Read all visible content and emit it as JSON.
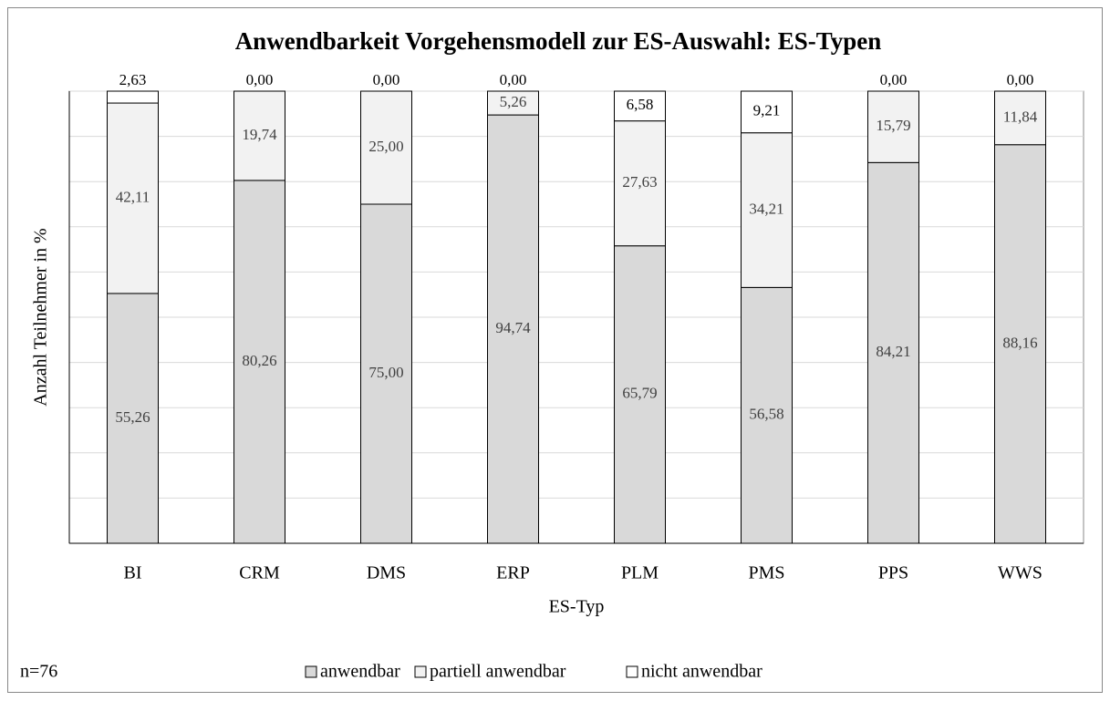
{
  "chart_data": {
    "type": "stacked_bar",
    "title": "Anwendbarkeit Vorgehensmodell zur ES-Auswahl: ES-Typen",
    "x_label": "ES-Typ",
    "y_label": "Anzahl Teilnehmer in %",
    "note": "n=76",
    "categories": [
      "BI",
      "CRM",
      "DMS",
      "ERP",
      "PLM",
      "PMS",
      "PPS",
      "WWS"
    ],
    "series": [
      {
        "name": "anwendbar",
        "color": "#d9d9d9",
        "values": [
          55.26,
          80.26,
          75.0,
          94.74,
          65.79,
          56.58,
          84.21,
          88.16
        ],
        "value_labels": [
          "55,26",
          "80,26",
          "75,00",
          "94,74",
          "65,79",
          "56,58",
          "84,21",
          "88,16"
        ]
      },
      {
        "name": "partiell anwendbar",
        "color": "#f2f2f2",
        "values": [
          42.11,
          19.74,
          25.0,
          5.26,
          27.63,
          34.21,
          15.79,
          11.84
        ],
        "value_labels": [
          "42,11",
          "19,74",
          "25,00",
          "5,26",
          "27,63",
          "34,21",
          "15,79",
          "11,84"
        ]
      },
      {
        "name": "nicht anwendbar",
        "color": "#ffffff",
        "values": [
          2.63,
          0.0,
          0.0,
          0.0,
          6.58,
          9.21,
          0.0,
          0.0
        ],
        "value_labels": [
          "2,63",
          "0,00",
          "0,00",
          "0,00",
          "6,58",
          "9,21",
          "0,00",
          "0,00"
        ]
      }
    ],
    "ylim": [
      0,
      100
    ],
    "yticks": [
      0,
      10,
      20,
      30,
      40,
      50,
      60,
      70,
      80,
      90,
      100
    ],
    "grid": true
  }
}
